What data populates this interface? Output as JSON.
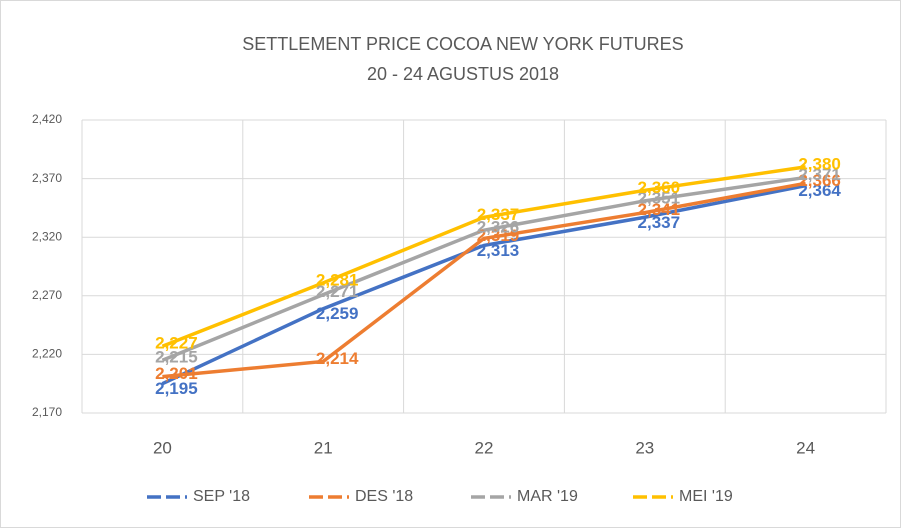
{
  "chart_data": {
    "type": "line",
    "title": "SETTLEMENT PRICE COCOA NEW YORK FUTURES",
    "subtitle": "20 - 24 AGUSTUS 2018",
    "categories": [
      "20",
      "21",
      "22",
      "23",
      "24"
    ],
    "series": [
      {
        "name": "SEP '18",
        "color": "#4472c4",
        "values": [
          2195,
          2259,
          2313,
          2337,
          2364
        ],
        "value_labels": [
          "2,195",
          "2,259",
          "2,313",
          "2,337",
          "2,364"
        ]
      },
      {
        "name": "DES '18",
        "color": "#ed7d31",
        "values": [
          2201,
          2214,
          2319,
          2341,
          2366
        ],
        "value_labels": [
          "2,201",
          "2,214",
          "2,319",
          "2,341",
          "2,366"
        ]
      },
      {
        "name": "MAR '19",
        "color": "#a5a5a5",
        "values": [
          2215,
          2271,
          2326,
          2351,
          2371
        ],
        "value_labels": [
          "2,215",
          "2,271",
          "2,326",
          "2,351",
          "2,371"
        ]
      },
      {
        "name": "MEI '19",
        "color": "#ffc000",
        "values": [
          2227,
          2281,
          2337,
          2360,
          2380
        ],
        "value_labels": [
          "2,227",
          "2,281",
          "2,337",
          "2,360",
          "2,380"
        ]
      }
    ],
    "ylim": [
      2170,
      2420
    ],
    "yticks": [
      {
        "value": 2170,
        "label": "2,170"
      },
      {
        "value": 2220,
        "label": "2,220"
      },
      {
        "value": 2270,
        "label": "2,270"
      },
      {
        "value": 2320,
        "label": "2,320"
      },
      {
        "value": 2370,
        "label": "2,370"
      },
      {
        "value": 2420,
        "label": "2,420"
      }
    ],
    "grid": true,
    "legend": "bottom"
  }
}
